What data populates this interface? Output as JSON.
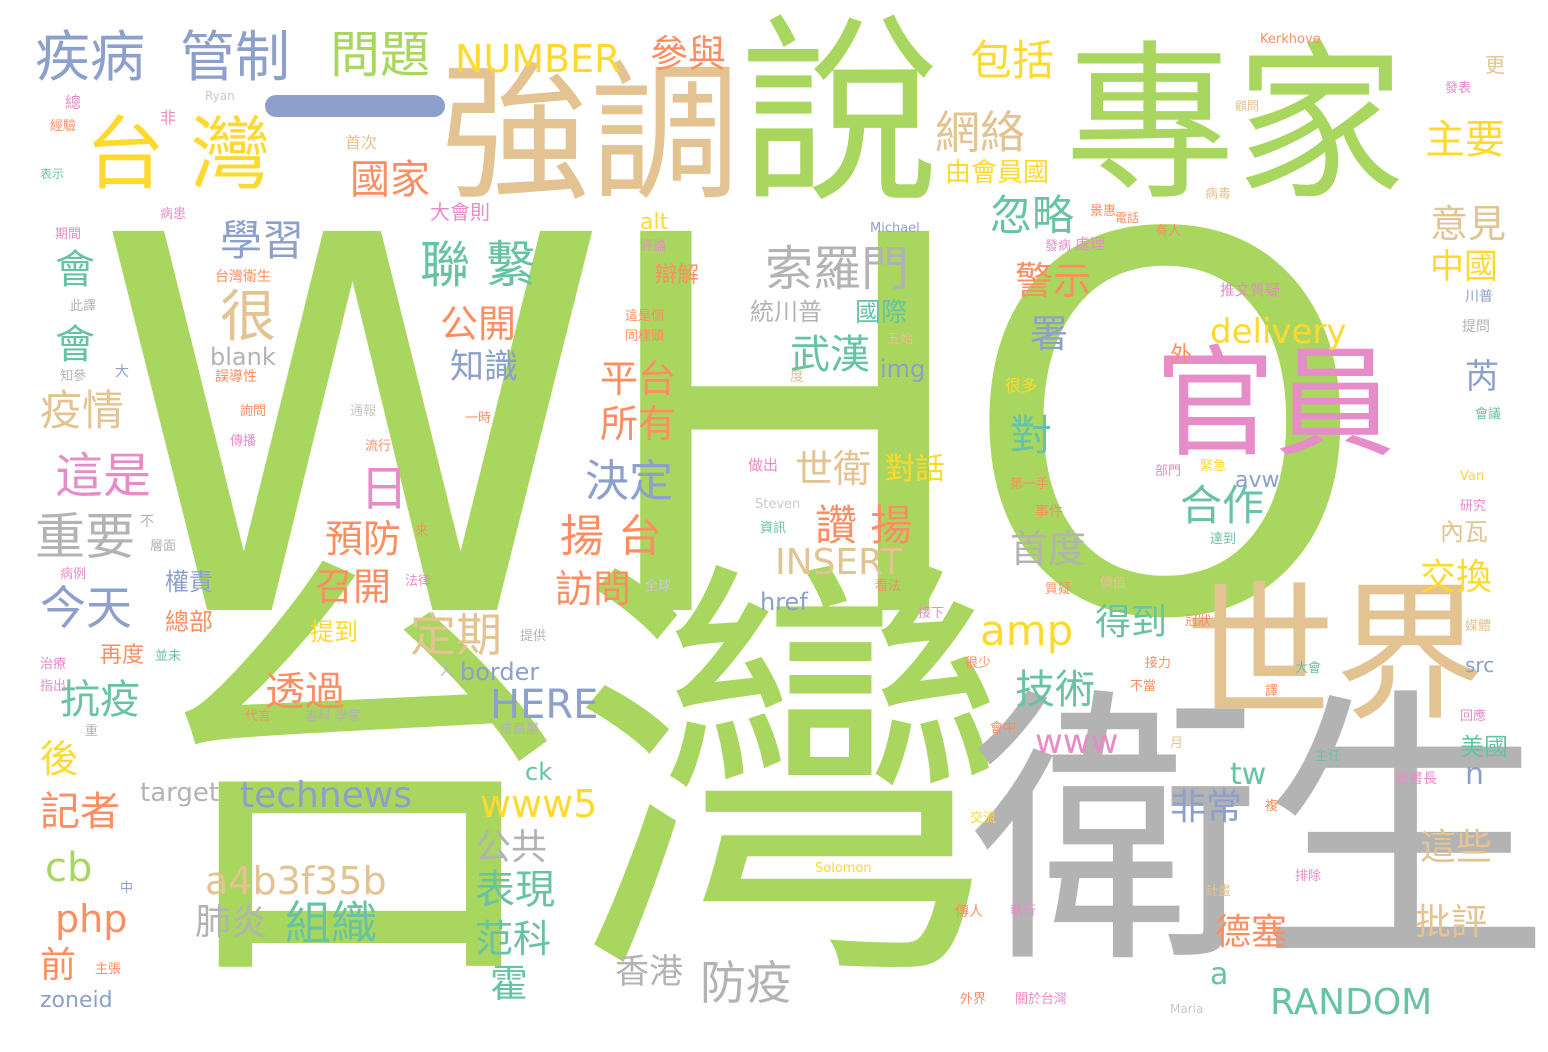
{
  "cloud": {
    "palette": {
      "green": "#a8d65e",
      "gray": "#b3b3b3",
      "tan": "#e3c391",
      "pink": "#e68cc8",
      "orange": "#fc8e62",
      "blue": "#8da0cb",
      "teal": "#67c3a4",
      "yellow": "#ffd92f"
    },
    "words": {
      "who": "WHO",
      "taiwan_big": "台灣",
      "weisheng": "衛生",
      "zhuanjia": "專家",
      "shuo": "說",
      "qiangdiao": "強調",
      "guanyuan": "官員",
      "shijie": "世界",
      "taiwan_mid": "台 灣",
      "jibing": "疾病",
      "guanzhi": "管制",
      "yi": "一",
      "wenti": "問題",
      "number": "NUMBER",
      "canyu": "參與",
      "baokuo": "包括",
      "wangluo": "網絡",
      "zhuyao": "主要",
      "guojia": "國家",
      "youhuiyuanguo": "由會員國",
      "huluo": "忽略",
      "lianxi": "聯 繫",
      "suoluomen": "索羅門",
      "xuexi": "學習",
      "hen": "很",
      "hui1": "會",
      "hui2": "會",
      "yiqing": "疫情",
      "zheshi": "這是",
      "zhongyao": "重要",
      "jintian": "今天",
      "kangyi": "抗疫",
      "hou": "後",
      "jizhe": "記者",
      "cb": "cb",
      "php": "php",
      "qian": "前",
      "zoneid": "zoneid",
      "gongkai": "公開",
      "zhishi": "知識",
      "pingtai": "平台",
      "suoyou": "所有",
      "jueding": "決定",
      "yangtai": "揚 台",
      "fangwen": "訪問",
      "ri": "日",
      "yufang": "預防",
      "zhaokai": "召開",
      "dingqi": "定期",
      "touguo": "透過",
      "tigao": "提到",
      "zongbu": "總部",
      "quanze": "權責",
      "zaidu": "再度",
      "technews": "technews",
      "here": "HERE",
      "border": "border",
      "target": "target",
      "ck": "ck",
      "a4b": "a4b3f35b",
      "feiyan": "肺炎",
      "zuzhi": "組織",
      "biaoxian": "表現",
      "fanke": "范科",
      "huo": "霍",
      "xianggang": "香港",
      "fangyi": "防疫",
      "gonggong": "公共",
      "www5": "www5",
      "www": "www",
      "amp": "amp",
      "insert": "INSERT",
      "href": "href",
      "zanyang": "讚 揚",
      "shiwei": "世衛",
      "duihua": "對話",
      "dui": "對",
      "wuhan": "武漢",
      "guoji": "國際",
      "tongchuanpu": "統川普",
      "blank": "blank",
      "img": "img",
      "alt": "alt",
      "delivery": "delivery",
      "hezuo": "合作",
      "jingshi": "警示",
      "shu": "署",
      "yijian": "意見",
      "zhongguo": "中國",
      "rui": "芮",
      "jishu": "技術",
      "dedao": "得到",
      "shoudu": "首度",
      "jiaohuan": "交換",
      "neiwa": "內瓦",
      "feichang": "非常",
      "tw": "tw",
      "zhexie": "這些",
      "pipping": "批評",
      "desai": "德塞",
      "random": "RANDOM",
      "a": "a",
      "n": "n",
      "meiguo": "美國",
      "avw": "avw",
      "src": "src",
      "wai": "外",
      "kerkhove": "Kerkhove",
      "geng": "更",
      "ryan": "Ryan",
      "zong": "總",
      "jingyan": "經驗",
      "fei": "非",
      "shouci": "首次",
      "biaoshi": "表示",
      "fabiao": "發表",
      "guwen": "顧問",
      "bingdu": "病毒",
      "youren": "有人",
      "dianbao": "電話",
      "huanzhe": "病患",
      "bingzhe": "病患",
      "qijian": "期間",
      "pinglun": "評論",
      "michael": "Michael",
      "fabing": "發病",
      "chuli": "處理",
      "taiwanweisheng": "台灣衛生",
      "bianjie": "辯解",
      "tuiwen": "推文質疑",
      "chuanpu": "川普",
      "tiwen": "提問",
      "ciqian": "此譯",
      "zheshiqiu": "這是個",
      "tongjie": "同樣頭",
      "wuyue": "五始",
      "zhican": "知參",
      "da": "大",
      "wudaoxing": "誤導性",
      "du": "度",
      "henduo": "很多",
      "huiyi": "會議",
      "guwen2": "詢問",
      "tongbao": "通報",
      "chuanbo": "傳播",
      "liuxing": "流行",
      "yishi": "一時",
      "zuochu": "做出",
      "diyishou": "第一手",
      "bumen": "部門",
      "jinji": "緊急",
      "yanjiu": "研究",
      "van": "Van",
      "steven": "Steven",
      "zixun": "資訊",
      "shijian": "事件",
      "bu": "不",
      "cengmian": "層面",
      "lai": "來",
      "dadao": "達到",
      "binglie": "病例",
      "falv": "法律",
      "quanqiu": "全球",
      "kanfa": "看法",
      "zhiyi": "質疑",
      "jiazhi": "價值",
      "jiexia": "接下",
      "guanzhuang": "冠狀",
      "meiti": "媒體",
      "tigong": "提供",
      "weimo": "並未",
      "zhiliao": "治療",
      "ren": "人",
      "henshao": "很少",
      "jieli": "接力",
      "budang": "不當",
      "dahui": "大會",
      "yi2": "譯",
      "zhichu": "指出",
      "daiyan": "代言",
      "shukexuejia": "書科 學家",
      "weigaoceng": "位高層",
      "huizhong": "會中",
      "yue": "月",
      "huigan": "回應",
      "zhong": "重",
      "zhuren": "主任",
      "mishuzhang": "秘書長",
      "zhu": "複",
      "jiaoliu": "交流",
      "zhong2": "中",
      "solomon": "Solomon",
      "paichu": "排除",
      "jihua": "計畫",
      "zhuzhang": "主張",
      "chuanren": "傳人",
      "zhixing": "執行",
      "waijie": "外界",
      "guanyutaiwan": "關於台灣",
      "maria": "Maria",
      "dahuize": "大會則",
      "zongli": "景惠"
    }
  }
}
